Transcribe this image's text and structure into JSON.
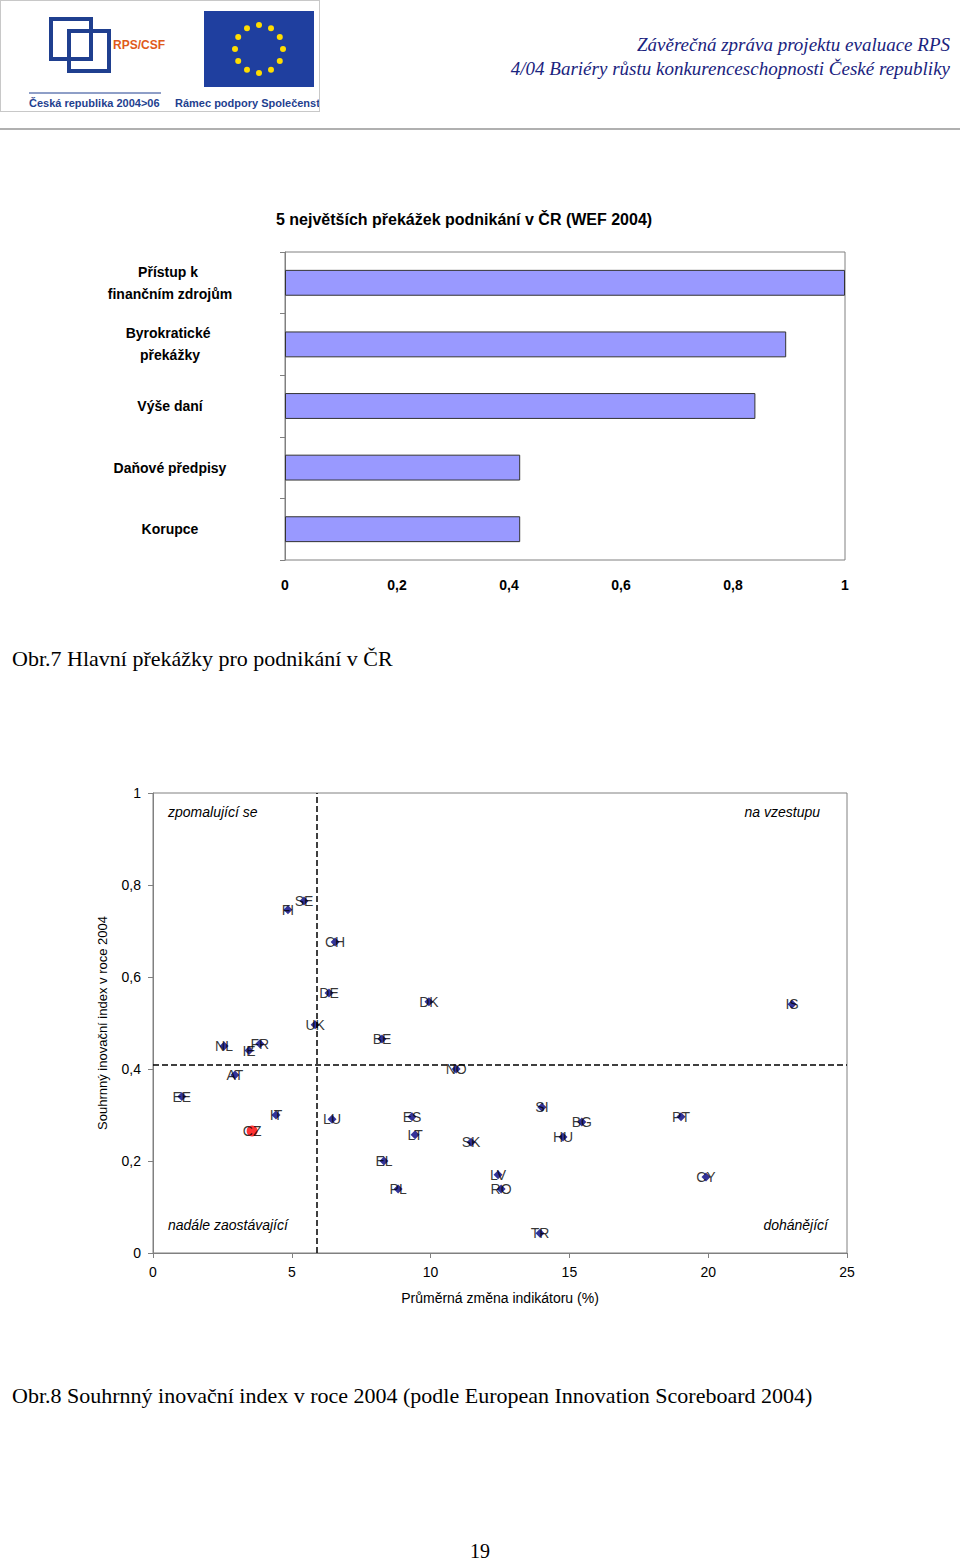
{
  "header": {
    "logo_texts": [
      "RPS/CSF",
      "Česká republika 2004>06",
      "Rámec podpory Společenství"
    ],
    "title_lines": [
      "Závěrečná zpráva projektu evaluace RPS",
      "4/04 Bariéry růstu konkurenceschopnosti České republiky"
    ]
  },
  "chart_data": [
    {
      "type": "bar",
      "orientation": "horizontal",
      "title": "5 největších překážek podnikání v ČR (WEF 2004)",
      "categories": [
        "Přístup k finančním zdrojům",
        "Byrokratické překážky",
        "Výše daní",
        "Daňové předpisy",
        "Korupce"
      ],
      "values": [
        1.0,
        0.895,
        0.84,
        0.42,
        0.42
      ],
      "color": "#9999ff",
      "xlim": [
        0,
        1
      ],
      "xticks": [
        0,
        {
          "value": 0.2,
          "label": "0,2"
        },
        {
          "value": 0.4,
          "label": "0,4"
        },
        {
          "value": 0.6,
          "label": "0,6"
        },
        {
          "value": 0.8,
          "label": "0,8"
        },
        1
      ],
      "grid": false
    },
    {
      "type": "scatter",
      "xlabel": "Průměrná změna indikátoru (%)",
      "ylabel": "Souhrnný inovační index v roce 2004",
      "xlim": [
        0,
        25
      ],
      "xticks": [
        0,
        5,
        10,
        15,
        20,
        25
      ],
      "ylim": [
        0,
        1
      ],
      "yticks": [
        0,
        {
          "value": 0.2,
          "label": "0,2"
        },
        {
          "value": 0.4,
          "label": "0,4"
        },
        {
          "value": 0.6,
          "label": "0,6"
        },
        {
          "value": 0.8,
          "label": "0,8"
        },
        1
      ],
      "grid": false,
      "series": [
        {
          "color": "#000080",
          "marker": "diamond",
          "values": [
            {
              "label": "EE",
              "x": 1.04,
              "y": 0.34
            },
            {
              "label": "NL",
              "x": 2.56,
              "y": 0.45
            },
            {
              "label": "IE",
              "x": 3.46,
              "y": 0.44
            },
            {
              "label": "FR",
              "x": 3.85,
              "y": 0.455
            },
            {
              "label": "AT",
              "x": 2.95,
              "y": 0.387
            },
            {
              "label": "FI",
              "x": 4.86,
              "y": 0.746
            },
            {
              "label": "SE",
              "x": 5.44,
              "y": 0.765
            },
            {
              "label": "IT",
              "x": 4.43,
              "y": 0.3
            },
            {
              "label": "CH",
              "x": 6.56,
              "y": 0.676
            },
            {
              "label": "DE",
              "x": 6.34,
              "y": 0.565
            },
            {
              "label": "UK",
              "x": 5.84,
              "y": 0.496
            },
            {
              "label": "LU",
              "x": 6.45,
              "y": 0.291
            },
            {
              "label": "EL",
              "x": 8.32,
              "y": 0.2
            },
            {
              "label": "PL",
              "x": 8.83,
              "y": 0.139
            },
            {
              "label": "BE",
              "x": 8.25,
              "y": 0.465
            },
            {
              "label": "ES",
              "x": 9.33,
              "y": 0.296
            },
            {
              "label": "LT",
              "x": 9.44,
              "y": 0.257
            },
            {
              "label": "DK",
              "x": 9.94,
              "y": 0.546
            },
            {
              "label": "NO",
              "x": 10.92,
              "y": 0.4
            },
            {
              "label": "SK",
              "x": 11.46,
              "y": 0.241
            },
            {
              "label": "LV",
              "x": 12.43,
              "y": 0.17
            },
            {
              "label": "RO",
              "x": 12.54,
              "y": 0.139
            },
            {
              "label": "SI",
              "x": 14.01,
              "y": 0.317
            },
            {
              "label": "TR",
              "x": 13.94,
              "y": 0.043
            },
            {
              "label": "BG",
              "x": 15.45,
              "y": 0.285
            },
            {
              "label": "HU",
              "x": 14.77,
              "y": 0.252
            },
            {
              "label": "PT",
              "x": 19.02,
              "y": 0.296
            },
            {
              "label": "CY",
              "x": 19.92,
              "y": 0.165
            },
            {
              "label": "IS",
              "x": 23.02,
              "y": 0.541
            }
          ]
        },
        {
          "color": "#ff0000",
          "marker": "circle",
          "values": [
            {
              "label": "CZ",
              "x": 3.57,
              "y": 0.265
            }
          ]
        }
      ],
      "reference_lines": {
        "x": 5.9,
        "y": 0.41
      },
      "annotations": {
        "top_left": "zpomalující se",
        "top_right": "na vzestupu",
        "bottom_left": "nadále zaostávající",
        "bottom_right": "dohánějící"
      }
    }
  ],
  "captions": [
    "Obr.7 Hlavní překážky pro podnikání v ČR",
    "Obr.8 Souhrnný inovační index v roce 2004 (podle European Innovation Scoreboard 2004)"
  ],
  "page_number": "19"
}
